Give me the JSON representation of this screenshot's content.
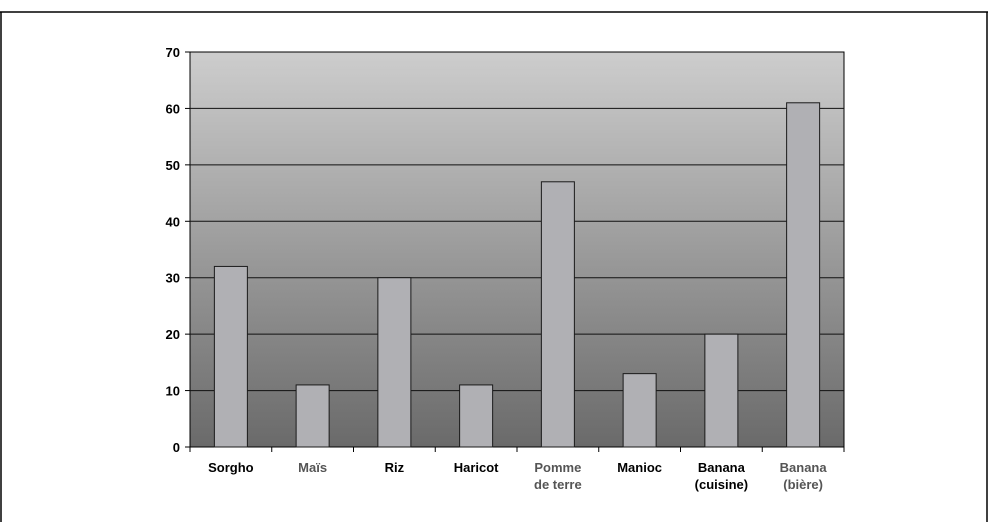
{
  "header": {
    "cut_text": ""
  },
  "chart_data": {
    "type": "bar",
    "categories": [
      [
        "Sorgho"
      ],
      [
        "Maïs"
      ],
      [
        "Riz"
      ],
      [
        "Haricot"
      ],
      [
        "Pomme",
        "de terre"
      ],
      [
        "Manioc"
      ],
      [
        "Banana",
        "(cuisine)"
      ],
      [
        "Banana",
        "(bière)"
      ]
    ],
    "category_colors": [
      "#000000",
      "#555555",
      "#000000",
      "#000000",
      "#555555",
      "#000000",
      "#000000",
      "#555555"
    ],
    "values": [
      32,
      11,
      30,
      11,
      47,
      13,
      20,
      61
    ],
    "ylim": [
      0,
      70
    ],
    "yticks": [
      0,
      10,
      20,
      30,
      40,
      50,
      60,
      70
    ],
    "title": "",
    "xlabel": "",
    "ylabel": "",
    "grid": true,
    "colors": {
      "bar_fill": "#b0b0b4",
      "bar_stroke": "#1a1a1a",
      "plot_top": "#cdcdcd",
      "plot_bottom": "#6a6a6a",
      "grid": "#111111"
    }
  }
}
